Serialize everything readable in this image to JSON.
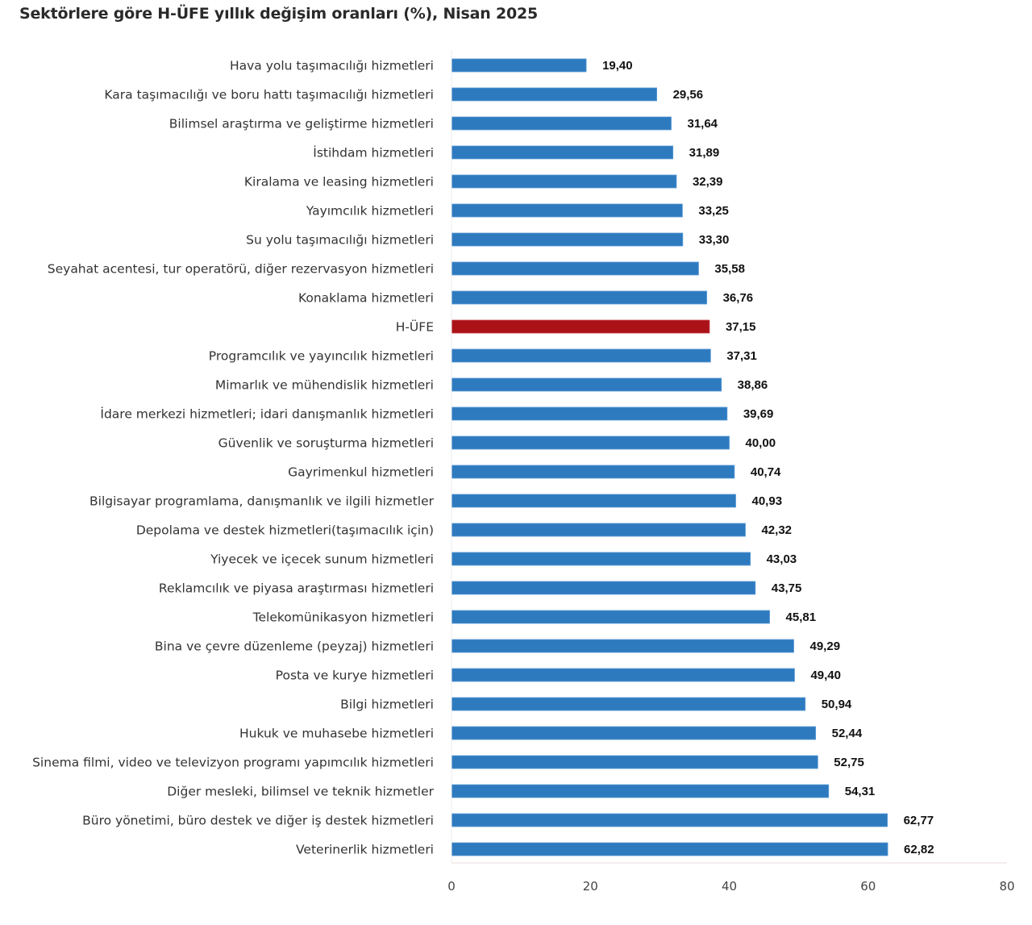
{
  "chart_data": {
    "type": "bar",
    "orientation": "horizontal",
    "title": "Sektörlere göre H-ÜFE yıllık değişim oranları (%), Nisan 2025",
    "xlabel": "",
    "ylabel": "",
    "xlim": [
      0,
      80
    ],
    "xticks": [
      0,
      20,
      40,
      60,
      80
    ],
    "xtick_labels": [
      "0",
      "20",
      "40",
      "60",
      "80"
    ],
    "grid": false,
    "legend": null,
    "colors": {
      "default": "#2e7abf",
      "highlight": "#aa1218",
      "axis": "#e8dada"
    },
    "categories": [
      "Hava yolu taşımacılığı hizmetleri",
      "Kara taşımacılığı ve boru hattı taşımacılığı hizmetleri",
      "Bilimsel araştırma ve geliştirme hizmetleri",
      "İstihdam hizmetleri",
      "Kiralama ve leasing hizmetleri",
      "Yayımcılık hizmetleri",
      "Su yolu taşımacılığı hizmetleri",
      "Seyahat acentesi, tur operatörü, diğer rezervasyon hizmetleri",
      "Konaklama hizmetleri",
      "H-ÜFE",
      "Programcılık ve yayıncılık hizmetleri",
      "Mimarlık ve mühendislik hizmetleri",
      "İdare merkezi hizmetleri; idari danışmanlık hizmetleri",
      "Güvenlik ve soruşturma hizmetleri",
      "Gayrimenkul hizmetleri",
      "Bilgisayar programlama, danışmanlık ve ilgili hizmetler",
      "Depolama ve destek hizmetleri(taşımacılık için)",
      "Yiyecek ve içecek sunum hizmetleri",
      "Reklamcılık ve piyasa araştırması hizmetleri",
      "Telekomünikasyon hizmetleri",
      "Bina ve çevre düzenleme (peyzaj) hizmetleri",
      "Posta ve kurye hizmetleri",
      "Bilgi hizmetleri",
      "Hukuk ve muhasebe hizmetleri",
      "Sinema filmi, video ve televizyon programı yapımcılık hizmetleri",
      "Diğer mesleki, bilimsel ve teknik hizmetler",
      "Büro yönetimi, büro destek ve diğer iş destek hizmetleri",
      "Veterinerlik hizmetleri"
    ],
    "values": [
      19.4,
      29.56,
      31.64,
      31.89,
      32.39,
      33.25,
      33.3,
      35.58,
      36.76,
      37.15,
      37.31,
      38.86,
      39.69,
      40.0,
      40.74,
      40.93,
      42.32,
      43.03,
      43.75,
      45.81,
      49.29,
      49.4,
      50.94,
      52.44,
      52.75,
      54.31,
      62.77,
      62.82
    ],
    "value_labels": [
      "19,40",
      "29,56",
      "31,64",
      "31,89",
      "32,39",
      "33,25",
      "33,30",
      "35,58",
      "36,76",
      "37,15",
      "37,31",
      "38,86",
      "39,69",
      "40,00",
      "40,74",
      "40,93",
      "42,32",
      "43,03",
      "43,75",
      "45,81",
      "49,29",
      "49,40",
      "50,94",
      "52,44",
      "52,75",
      "54,31",
      "62,77",
      "62,82"
    ],
    "highlight_category": "H-ÜFE"
  }
}
